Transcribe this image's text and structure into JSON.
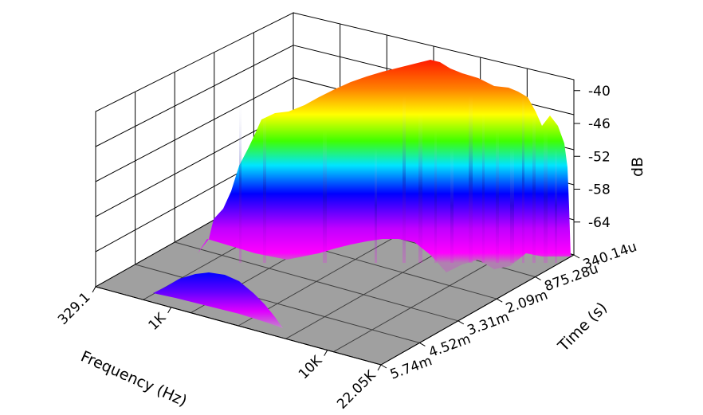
{
  "chart_data": {
    "type": "3d-surface",
    "title": "",
    "xlabel": "Frequency (Hz)",
    "ylabel": "Time (s)",
    "zlabel": "dB",
    "x_scale": "log",
    "x_range": [
      329.1,
      22050
    ],
    "x_ticks": [
      "329.1",
      "1K",
      "10K",
      "22.05K"
    ],
    "y_range": [
      0.00034014,
      0.00574
    ],
    "y_ticks": [
      "340.14u",
      "875.28u",
      "2.09m",
      "3.31m",
      "4.52m",
      "5.74m"
    ],
    "z_range": [
      -70,
      -38
    ],
    "z_ticks": [
      "-40",
      "-46",
      "-52",
      "-58",
      "-64"
    ],
    "floor_color": "#a0a0a0",
    "colormap": [
      "#ff00ff",
      "#0000ff",
      "#00ffff",
      "#00ff00",
      "#ffff00",
      "#ff7f00",
      "#ff0000"
    ],
    "grid": true,
    "main_ridge": {
      "description_source": "surface peak profile along frequency at earliest time",
      "x": [
        500,
        650,
        800,
        1000,
        1500,
        2000,
        3000,
        4000,
        5000,
        6000,
        7000,
        8000,
        10000,
        12000,
        14000,
        16000,
        18000,
        20000,
        22050
      ],
      "z": [
        -64,
        -59,
        -52,
        -47,
        -46,
        -45,
        -43.5,
        -42.5,
        -42,
        -41,
        -40.5,
        -40,
        -39.5,
        -40,
        -40.5,
        -42,
        -47,
        -45,
        -67
      ]
    },
    "secondary_lobe": {
      "x": [
        600,
        800,
        1000,
        1500,
        2000,
        3000,
        4000
      ],
      "z": [
        -68,
        -63,
        -60,
        -58.5,
        -60,
        -63,
        -68
      ]
    }
  }
}
